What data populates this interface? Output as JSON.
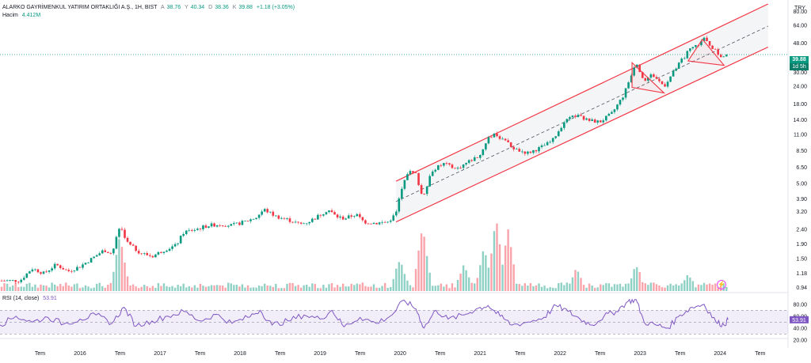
{
  "chart_data": [
    {
      "type": "candlestick",
      "title": "ALARKO GAYRİMENKUL YATIRIM ORTAKLIĞI A.Ş., 1H, BIST",
      "ohlc_label": {
        "o_key": "A",
        "o": "38.76",
        "h_key": "Y",
        "h": "40.34",
        "l_key": "D",
        "l": "38.36",
        "c_key": "K",
        "c": "39.88",
        "change": "+1.18 (+3.05%)"
      },
      "currency": "TRY",
      "y_scale": "log",
      "ylim": [
        0.9,
        90
      ],
      "y_ticks": [
        "80.00",
        "64.00",
        "48.00",
        "30.00",
        "24.00",
        "18.00",
        "14.00",
        "11.00",
        "8.50",
        "6.50",
        "5.00",
        "3.90",
        "3.20",
        "2.40",
        "1.90",
        "1.50",
        "1.18",
        "0.94"
      ],
      "x_ticks": [
        "Tem",
        "2016",
        "Tem",
        "2017",
        "Tem",
        "2018",
        "Tem",
        "2019",
        "Tem",
        "2020",
        "Tem",
        "2021",
        "Tem",
        "2022",
        "Tem",
        "2023",
        "Tem",
        "2024",
        "Tem"
      ],
      "last_price": "39.88",
      "last_price_countdown": "1d 5h",
      "price_path": [
        [
          2015.25,
          1.05
        ],
        [
          2015.4,
          1.28
        ],
        [
          2015.55,
          1.18
        ],
        [
          2015.7,
          1.36
        ],
        [
          2015.85,
          1.22
        ],
        [
          2016.0,
          1.32
        ],
        [
          2016.15,
          1.5
        ],
        [
          2016.3,
          1.72
        ],
        [
          2016.4,
          1.62
        ],
        [
          2016.5,
          2.55
        ],
        [
          2016.6,
          1.9
        ],
        [
          2016.75,
          1.65
        ],
        [
          2016.9,
          1.55
        ],
        [
          2017.05,
          1.72
        ],
        [
          2017.2,
          1.85
        ],
        [
          2017.3,
          2.3
        ],
        [
          2017.45,
          2.4
        ],
        [
          2017.6,
          2.55
        ],
        [
          2017.75,
          2.6
        ],
        [
          2017.9,
          2.55
        ],
        [
          2018.05,
          2.7
        ],
        [
          2018.2,
          2.9
        ],
        [
          2018.3,
          3.3
        ],
        [
          2018.45,
          2.95
        ],
        [
          2018.6,
          2.8
        ],
        [
          2018.75,
          2.6
        ],
        [
          2018.85,
          2.7
        ],
        [
          2018.95,
          2.9
        ],
        [
          2019.1,
          3.3
        ],
        [
          2019.2,
          2.95
        ],
        [
          2019.3,
          2.85
        ],
        [
          2019.45,
          3.05
        ],
        [
          2019.55,
          2.7
        ],
        [
          2019.7,
          2.65
        ],
        [
          2019.85,
          2.7
        ],
        [
          2019.95,
          3.1
        ],
        [
          2020.0,
          4.2
        ],
        [
          2020.1,
          6.1
        ],
        [
          2020.2,
          5.8
        ],
        [
          2020.28,
          4.0
        ],
        [
          2020.4,
          6.2
        ],
        [
          2020.55,
          6.9
        ],
        [
          2020.7,
          6.3
        ],
        [
          2020.85,
          7.1
        ],
        [
          2021.0,
          7.9
        ],
        [
          2021.1,
          10.5
        ],
        [
          2021.2,
          11.0
        ],
        [
          2021.35,
          9.5
        ],
        [
          2021.45,
          8.6
        ],
        [
          2021.6,
          8.2
        ],
        [
          2021.75,
          8.9
        ],
        [
          2021.9,
          9.9
        ],
        [
          2022.05,
          13.5
        ],
        [
          2022.2,
          15.0
        ],
        [
          2022.35,
          13.8
        ],
        [
          2022.5,
          13.5
        ],
        [
          2022.65,
          15.5
        ],
        [
          2022.8,
          21.0
        ],
        [
          2022.95,
          36.0
        ],
        [
          2023.05,
          26.0
        ],
        [
          2023.15,
          29.0
        ],
        [
          2023.3,
          24.0
        ],
        [
          2023.45,
          32.0
        ],
        [
          2023.6,
          42.0
        ],
        [
          2023.7,
          46.0
        ],
        [
          2023.8,
          51.0
        ],
        [
          2023.9,
          45.0
        ],
        [
          2024.0,
          38.76
        ],
        [
          2024.08,
          39.88
        ]
      ],
      "volume": {
        "label": "Hacim",
        "last_value": "4.412M",
        "peaks": [
          [
            2016.5,
            0.75
          ],
          [
            2020.0,
            0.45
          ],
          [
            2020.28,
            0.9
          ],
          [
            2020.8,
            0.35
          ],
          [
            2021.05,
            0.6
          ],
          [
            2021.2,
            1.0
          ],
          [
            2021.35,
            0.85
          ],
          [
            2022.2,
            0.3
          ],
          [
            2022.95,
            0.35
          ],
          [
            2023.6,
            0.2
          ]
        ]
      },
      "trend_channel": {
        "start": [
          2019.95,
          2.7
        ],
        "end": [
          2024.6,
          45.0
        ],
        "band_top_start": 5.2,
        "band_top_end": 90.0,
        "mid_start": 3.75,
        "mid_end": 63.0
      },
      "patterns": [
        {
          "name": "wedge-1",
          "points": [
            [
              2022.9,
              35.0
            ],
            [
              2023.3,
              21.5
            ],
            [
              2022.9,
              23.5
            ]
          ]
        },
        {
          "name": "wedge-2",
          "points": [
            [
              2023.78,
              51.0
            ],
            [
              2024.05,
              33.5
            ],
            [
              2023.6,
              36.0
            ]
          ]
        }
      ]
    },
    {
      "type": "line",
      "title": "RSI (14, close)",
      "last_value": "53.91",
      "ylim": [
        25,
        85
      ],
      "y_ticks": [
        "80.00",
        "60.00",
        "40.00",
        "20.00"
      ],
      "band": [
        30,
        70
      ],
      "series": [
        {
          "values_by_year": [
            [
              2015.0,
              45
            ],
            [
              2015.2,
              60
            ],
            [
              2015.4,
              50
            ],
            [
              2015.6,
              58
            ],
            [
              2015.8,
              47
            ],
            [
              2016.0,
              55
            ],
            [
              2016.2,
              62
            ],
            [
              2016.4,
              48
            ],
            [
              2016.55,
              75
            ],
            [
              2016.7,
              43
            ],
            [
              2016.9,
              52
            ],
            [
              2017.1,
              60
            ],
            [
              2017.3,
              68
            ],
            [
              2017.5,
              52
            ],
            [
              2017.7,
              63
            ],
            [
              2017.9,
              48
            ],
            [
              2018.1,
              58
            ],
            [
              2018.25,
              70
            ],
            [
              2018.4,
              45
            ],
            [
              2018.6,
              52
            ],
            [
              2018.8,
              62
            ],
            [
              2019.0,
              55
            ],
            [
              2019.15,
              70
            ],
            [
              2019.3,
              42
            ],
            [
              2019.5,
              58
            ],
            [
              2019.7,
              48
            ],
            [
              2019.9,
              62
            ],
            [
              2020.05,
              87
            ],
            [
              2020.2,
              72
            ],
            [
              2020.3,
              40
            ],
            [
              2020.45,
              70
            ],
            [
              2020.6,
              55
            ],
            [
              2020.8,
              62
            ],
            [
              2020.95,
              72
            ],
            [
              2021.1,
              78
            ],
            [
              2021.25,
              60
            ],
            [
              2021.4,
              45
            ],
            [
              2021.6,
              50
            ],
            [
              2021.8,
              58
            ],
            [
              2021.95,
              78
            ],
            [
              2022.1,
              68
            ],
            [
              2022.25,
              55
            ],
            [
              2022.4,
              45
            ],
            [
              2022.55,
              60
            ],
            [
              2022.7,
              68
            ],
            [
              2022.85,
              85
            ],
            [
              2022.95,
              88
            ],
            [
              2023.05,
              50
            ],
            [
              2023.2,
              45
            ],
            [
              2023.35,
              40
            ],
            [
              2023.5,
              62
            ],
            [
              2023.65,
              75
            ],
            [
              2023.8,
              80
            ],
            [
              2023.95,
              50
            ],
            [
              2024.05,
              45
            ],
            [
              2024.1,
              53.91
            ]
          ]
        }
      ]
    }
  ]
}
